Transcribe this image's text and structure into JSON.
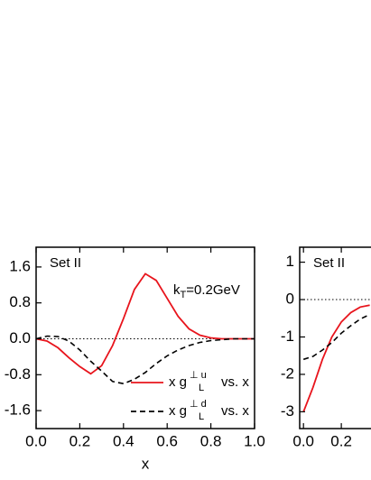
{
  "chart_data": [
    {
      "type": "line",
      "annotations": [
        {
          "text": "Set   II"
        },
        {
          "text": "k",
          "sub": "T",
          "suffix": "=0.2GeV"
        }
      ],
      "x_label": "x",
      "x": [
        0,
        0.05,
        0.1,
        0.15,
        0.2,
        0.25,
        0.3,
        0.35,
        0.4,
        0.45,
        0.5,
        0.55,
        0.6,
        0.65,
        0.7,
        0.75,
        0.8,
        0.85,
        0.9,
        0.95,
        1.0
      ],
      "series": [
        {
          "name": "x g",
          "name_sub": "L",
          "name_sup": "⊥ u",
          "name_suffix": "vs. x",
          "color": "#e8141c",
          "dash": false,
          "values": [
            0,
            -0.05,
            -0.2,
            -0.42,
            -0.62,
            -0.78,
            -0.6,
            -0.15,
            0.45,
            1.1,
            1.45,
            1.3,
            0.9,
            0.5,
            0.22,
            0.08,
            0.02,
            0,
            0,
            0,
            0
          ]
        },
        {
          "name": "x g",
          "name_sub": "L",
          "name_sup": "⊥ d",
          "name_suffix": "vs. x",
          "color": "#000000",
          "dash": true,
          "values": [
            0,
            0.06,
            0.05,
            -0.05,
            -0.25,
            -0.5,
            -0.72,
            -0.95,
            -1.0,
            -0.9,
            -0.75,
            -0.55,
            -0.38,
            -0.25,
            -0.15,
            -0.08,
            -0.04,
            -0.02,
            0,
            0,
            0
          ]
        }
      ],
      "xlim": [
        0,
        1
      ],
      "ylim": [
        -2.0,
        2.04
      ],
      "xticks": [
        {
          "value": 0,
          "label": "0.0"
        },
        {
          "value": 0.2,
          "label": "0.2"
        },
        {
          "value": 0.4,
          "label": "0.4"
        },
        {
          "value": 0.6,
          "label": "0.6"
        },
        {
          "value": 0.8,
          "label": "0.8"
        },
        {
          "value": 1,
          "label": "1.0"
        }
      ],
      "yticks": [
        1.6,
        0.8,
        {
          "value": 0,
          "label": "0.0"
        },
        -0.8,
        -1.6
      ],
      "zero_line": true
    },
    {
      "type": "line",
      "annotations": [
        {
          "text": "Set   II"
        }
      ],
      "x": [
        0,
        0.05,
        0.1,
        0.15,
        0.2,
        0.25,
        0.3,
        0.35
      ],
      "series": [
        {
          "color": "#e8141c",
          "dash": false,
          "values": [
            -3.0,
            -2.35,
            -1.6,
            -1.0,
            -0.6,
            -0.35,
            -0.2,
            -0.15
          ]
        },
        {
          "color": "#000000",
          "dash": true,
          "values": [
            -1.6,
            -1.52,
            -1.35,
            -1.15,
            -0.9,
            -0.7,
            -0.52,
            -0.4
          ]
        }
      ],
      "xlim": [
        -0.02,
        1.02
      ],
      "ylim": [
        -3.45,
        1.4
      ],
      "xticks": [
        {
          "value": 0,
          "label": "0.0"
        },
        {
          "value": 0.2,
          "label": "0.2"
        }
      ],
      "yticks": [
        1,
        0,
        -1,
        -2,
        -3
      ],
      "zero_line": true
    }
  ]
}
